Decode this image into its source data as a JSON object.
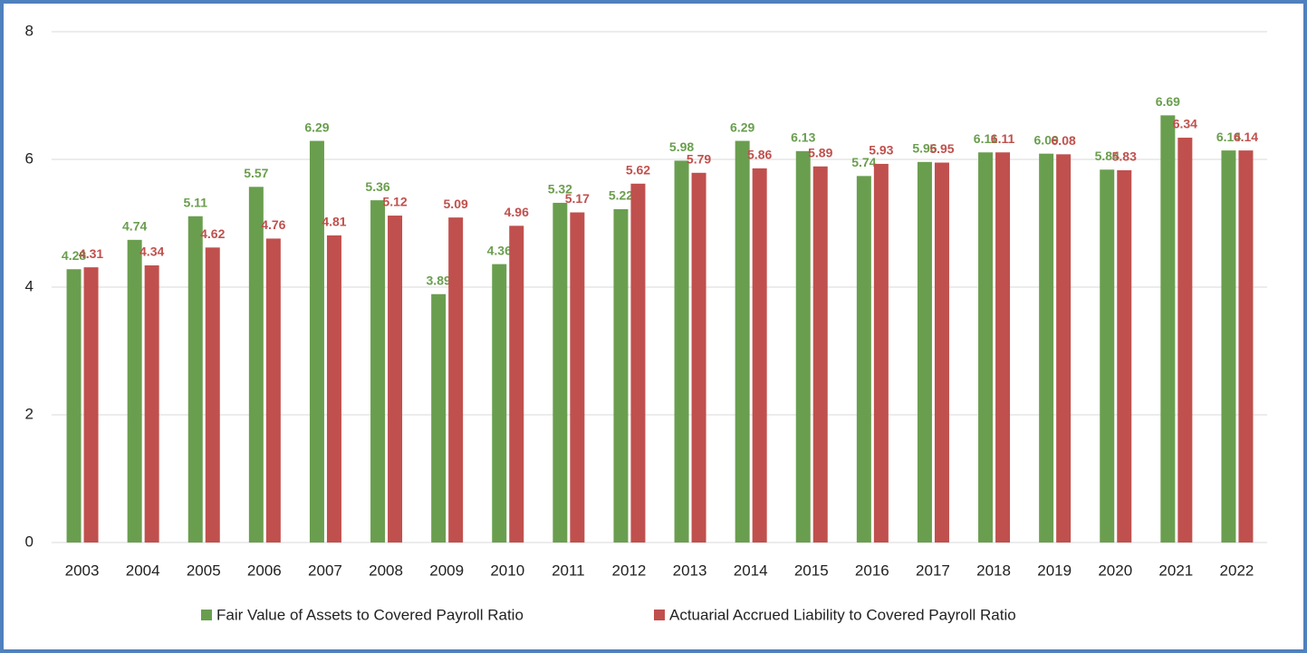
{
  "chart_data": {
    "type": "bar",
    "categories": [
      "2003",
      "2004",
      "2005",
      "2006",
      "2007",
      "2008",
      "2009",
      "2010",
      "2011",
      "2012",
      "2013",
      "2014",
      "2015",
      "2016",
      "2017",
      "2018",
      "2019",
      "2020",
      "2021",
      "2022"
    ],
    "series": [
      {
        "name": "Fair Value of Assets to Covered Payroll Ratio",
        "color": "#6a9e4f",
        "values": [
          4.28,
          4.74,
          5.11,
          5.57,
          6.29,
          5.36,
          3.89,
          4.36,
          5.32,
          5.22,
          5.98,
          6.29,
          6.13,
          5.74,
          5.96,
          6.11,
          6.09,
          5.84,
          6.69,
          6.14
        ]
      },
      {
        "name": "Actuarial Accrued Liability to Covered Payroll Ratio",
        "color": "#c0504d",
        "values": [
          4.31,
          4.34,
          4.62,
          4.76,
          4.81,
          5.12,
          5.09,
          4.96,
          5.17,
          5.62,
          5.79,
          5.86,
          5.89,
          5.93,
          5.95,
          6.11,
          6.08,
          5.83,
          6.34,
          6.14
        ]
      }
    ],
    "ylim": [
      0,
      8
    ],
    "yticks": [
      0,
      2,
      4,
      6,
      8
    ],
    "grid": true,
    "legend": "bottom"
  }
}
